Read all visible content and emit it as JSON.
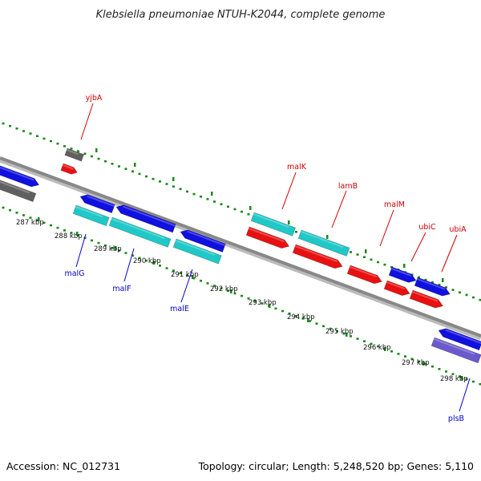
{
  "title": "Klebsiella pneumoniae NTUH-K2044, complete genome",
  "footer": {
    "accession": "Accession: NC_012731",
    "summary": "Topology: circular; Length: 5,248,520 bp; Genes: 5,110"
  },
  "colors": {
    "gene_blue": "#1010e0",
    "gene_cyan": "#20c8c8",
    "gene_red": "#e81010",
    "gene_gray": "#606060",
    "gene_purple": "#6a5acd",
    "backbone": "#888888",
    "dots": "#1a8a1a",
    "label_red": "#cc0000",
    "label_blue": "#0000cc"
  },
  "axis_ticks": [
    "287 kbp",
    "288 kbp",
    "289 kbp",
    "290 kbp",
    "291 kbp",
    "292 kbp",
    "293 kbp",
    "294 kbp",
    "295 kbp",
    "296 kbp",
    "297 kbp",
    "298 kbp"
  ],
  "gene_labels_top": [
    "yjbA",
    "malK",
    "lamB",
    "malM",
    "ubiC",
    "ubiA"
  ],
  "gene_labels_bottom": [
    "malG",
    "malF",
    "malE",
    "plsB"
  ]
}
